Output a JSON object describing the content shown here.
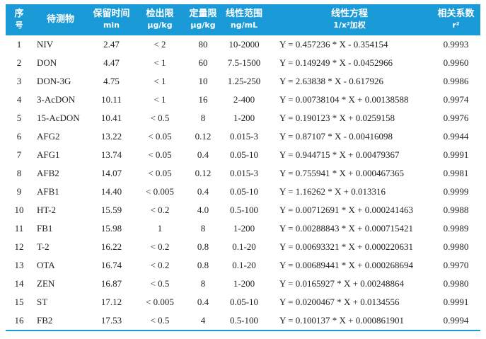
{
  "table": {
    "header": [
      [
        "序",
        "号"
      ],
      [
        "待测物"
      ],
      [
        "保留时间",
        "min"
      ],
      [
        "检出限",
        "μg/kg"
      ],
      [
        "定量限",
        "μg/kg"
      ],
      [
        "线性范围",
        "ng/mL"
      ],
      [
        "线性方程",
        "1/x²加权"
      ],
      [
        "相关系数",
        "r²"
      ]
    ],
    "rows": [
      [
        "1",
        "NIV",
        "2.47",
        "< 2",
        "80",
        "10-2000",
        "Y = 0.457236 * X - 0.354154",
        "0.9993"
      ],
      [
        "2",
        "DON",
        "4.47",
        "< 1",
        "60",
        "7.5-1500",
        "Y = 0.149249 * X - 0.0452966",
        "0.9960"
      ],
      [
        "3",
        "DON-3G",
        "4.75",
        "< 1",
        "10",
        "1.25-250",
        "Y = 2.63838 * X - 0.617926",
        "0.9986"
      ],
      [
        "4",
        "3-AcDON",
        "10.11",
        "< 1",
        "16",
        "2-400",
        "Y = 0.00738104 * X + 0.00138588",
        "0.9974"
      ],
      [
        "5",
        "15-AcDON",
        "10.41",
        "< 0.5",
        "8",
        "1-200",
        "Y = 0.190123 * X + 0.0259158",
        "0.9976"
      ],
      [
        "6",
        "AFG2",
        "13.22",
        "< 0.05",
        "0.12",
        "0.015-3",
        "Y = 0.87107 * X - 0.00416098",
        "0.9944"
      ],
      [
        "7",
        "AFG1",
        "13.74",
        "< 0.05",
        "0.4",
        "0.05-10",
        "Y = 0.944715 * X + 0.00479367",
        "0.9991"
      ],
      [
        "8",
        "AFB2",
        "14.07",
        "< 0.05",
        "0.12",
        "0.015-3",
        "Y = 0.755941 * X + 0.000467365",
        "0.9981"
      ],
      [
        "9",
        "AFB1",
        "14.40",
        "< 0.005",
        "0.4",
        "0.05-10",
        "Y = 1.16262 * X + 0.013316",
        "0.9999"
      ],
      [
        "10",
        "HT-2",
        "15.59",
        "< 0.2",
        "4.0",
        "0.5-100",
        "Y = 0.00712691 * X + 0.000241463",
        "0.9988"
      ],
      [
        "11",
        "FB1",
        "15.98",
        "1",
        "8",
        "1-200",
        "Y = 0.00288843 * X + 0.000715421",
        "0.9989"
      ],
      [
        "12",
        "T-2",
        "16.22",
        "< 0.2",
        "0.8",
        "0.1-20",
        "Y = 0.00693321 * X + 0.000220631",
        "0.9980"
      ],
      [
        "13",
        "OTA",
        "16.74",
        "< 0.2",
        "0.8",
        "0.1-20",
        "Y = 0.00689441 * X + 0.000268694",
        "0.9970"
      ],
      [
        "14",
        "ZEN",
        "16.87",
        "< 0.5",
        "8",
        "1-200",
        "Y = 0.0165927 * X + 0.00248864",
        "0.9980"
      ],
      [
        "15",
        "ST",
        "17.12",
        "< 0.005",
        "0.4",
        "0.05-10",
        "Y = 0.0200467 * X + 0.0134556",
        "0.9991"
      ],
      [
        "16",
        "FB2",
        "17.53",
        "< 0.5",
        "4",
        "0.5-100",
        "Y = 0.100137 * X + 0.000861901",
        "0.9994"
      ]
    ]
  }
}
